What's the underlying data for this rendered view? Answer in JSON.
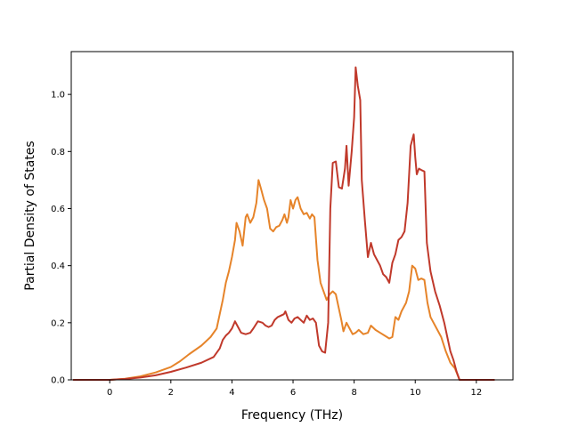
{
  "chart_data": {
    "type": "line",
    "title": "",
    "xlabel": "Frequency (THz)",
    "ylabel": "Partial Density of States",
    "xlim": [
      -1.26,
      13.2
    ],
    "ylim": [
      0.0,
      1.15
    ],
    "xticks": [
      0,
      2,
      4,
      6,
      8,
      10,
      12
    ],
    "xtick_labels": [
      "0",
      "2",
      "4",
      "6",
      "8",
      "10",
      "12"
    ],
    "yticks": [
      0.0,
      0.2,
      0.4,
      0.6,
      0.8,
      1.0
    ],
    "ytick_labels": [
      "0.0",
      "0.2",
      "0.4",
      "0.6",
      "0.8",
      "1.0"
    ],
    "grid": false,
    "legend": "none",
    "series": [
      {
        "color": "#e6842a",
        "points": [
          [
            -1.2,
            0.0
          ],
          [
            0.0,
            0.0
          ],
          [
            0.5,
            0.004
          ],
          [
            1.0,
            0.012
          ],
          [
            1.5,
            0.026
          ],
          [
            2.0,
            0.045
          ],
          [
            2.3,
            0.065
          ],
          [
            2.6,
            0.09
          ],
          [
            3.0,
            0.12
          ],
          [
            3.3,
            0.15
          ],
          [
            3.5,
            0.18
          ],
          [
            3.6,
            0.23
          ],
          [
            3.7,
            0.28
          ],
          [
            3.8,
            0.34
          ],
          [
            3.9,
            0.38
          ],
          [
            4.0,
            0.43
          ],
          [
            4.1,
            0.49
          ],
          [
            4.15,
            0.55
          ],
          [
            4.25,
            0.52
          ],
          [
            4.35,
            0.47
          ],
          [
            4.45,
            0.57
          ],
          [
            4.5,
            0.58
          ],
          [
            4.6,
            0.55
          ],
          [
            4.7,
            0.57
          ],
          [
            4.8,
            0.62
          ],
          [
            4.87,
            0.7
          ],
          [
            4.95,
            0.67
          ],
          [
            5.05,
            0.63
          ],
          [
            5.15,
            0.6
          ],
          [
            5.25,
            0.53
          ],
          [
            5.35,
            0.52
          ],
          [
            5.45,
            0.535
          ],
          [
            5.55,
            0.54
          ],
          [
            5.65,
            0.56
          ],
          [
            5.72,
            0.58
          ],
          [
            5.8,
            0.55
          ],
          [
            5.85,
            0.57
          ],
          [
            5.92,
            0.63
          ],
          [
            6.0,
            0.6
          ],
          [
            6.08,
            0.63
          ],
          [
            6.15,
            0.64
          ],
          [
            6.25,
            0.6
          ],
          [
            6.35,
            0.58
          ],
          [
            6.45,
            0.585
          ],
          [
            6.55,
            0.565
          ],
          [
            6.62,
            0.58
          ],
          [
            6.7,
            0.57
          ],
          [
            6.8,
            0.42
          ],
          [
            6.9,
            0.34
          ],
          [
            7.0,
            0.31
          ],
          [
            7.1,
            0.28
          ],
          [
            7.2,
            0.3
          ],
          [
            7.3,
            0.31
          ],
          [
            7.4,
            0.3
          ],
          [
            7.5,
            0.25
          ],
          [
            7.58,
            0.21
          ],
          [
            7.65,
            0.17
          ],
          [
            7.75,
            0.2
          ],
          [
            7.85,
            0.18
          ],
          [
            7.95,
            0.16
          ],
          [
            8.05,
            0.165
          ],
          [
            8.15,
            0.175
          ],
          [
            8.3,
            0.16
          ],
          [
            8.45,
            0.165
          ],
          [
            8.55,
            0.19
          ],
          [
            8.7,
            0.175
          ],
          [
            8.85,
            0.165
          ],
          [
            9.0,
            0.155
          ],
          [
            9.15,
            0.145
          ],
          [
            9.25,
            0.15
          ],
          [
            9.35,
            0.22
          ],
          [
            9.45,
            0.21
          ],
          [
            9.55,
            0.24
          ],
          [
            9.7,
            0.27
          ],
          [
            9.8,
            0.31
          ],
          [
            9.9,
            0.4
          ],
          [
            10.0,
            0.39
          ],
          [
            10.1,
            0.35
          ],
          [
            10.2,
            0.355
          ],
          [
            10.3,
            0.35
          ],
          [
            10.4,
            0.27
          ],
          [
            10.5,
            0.22
          ],
          [
            10.7,
            0.18
          ],
          [
            10.85,
            0.15
          ],
          [
            11.0,
            0.1
          ],
          [
            11.15,
            0.06
          ],
          [
            11.3,
            0.04
          ],
          [
            11.45,
            0.0
          ],
          [
            12.6,
            0.0
          ]
        ]
      },
      {
        "color": "#c0392b",
        "points": [
          [
            -1.2,
            0.0
          ],
          [
            0.0,
            0.0
          ],
          [
            0.5,
            0.003
          ],
          [
            1.0,
            0.008
          ],
          [
            1.5,
            0.016
          ],
          [
            2.0,
            0.028
          ],
          [
            2.5,
            0.043
          ],
          [
            3.0,
            0.06
          ],
          [
            3.4,
            0.08
          ],
          [
            3.6,
            0.11
          ],
          [
            3.7,
            0.14
          ],
          [
            3.8,
            0.155
          ],
          [
            3.9,
            0.165
          ],
          [
            4.0,
            0.18
          ],
          [
            4.1,
            0.205
          ],
          [
            4.2,
            0.185
          ],
          [
            4.3,
            0.165
          ],
          [
            4.45,
            0.16
          ],
          [
            4.6,
            0.165
          ],
          [
            4.7,
            0.18
          ],
          [
            4.85,
            0.205
          ],
          [
            5.0,
            0.2
          ],
          [
            5.1,
            0.19
          ],
          [
            5.2,
            0.185
          ],
          [
            5.3,
            0.19
          ],
          [
            5.4,
            0.21
          ],
          [
            5.5,
            0.22
          ],
          [
            5.6,
            0.225
          ],
          [
            5.7,
            0.23
          ],
          [
            5.75,
            0.24
          ],
          [
            5.85,
            0.21
          ],
          [
            5.95,
            0.2
          ],
          [
            6.05,
            0.215
          ],
          [
            6.15,
            0.22
          ],
          [
            6.25,
            0.21
          ],
          [
            6.35,
            0.2
          ],
          [
            6.45,
            0.225
          ],
          [
            6.55,
            0.21
          ],
          [
            6.65,
            0.215
          ],
          [
            6.75,
            0.2
          ],
          [
            6.85,
            0.12
          ],
          [
            6.95,
            0.1
          ],
          [
            7.05,
            0.095
          ],
          [
            7.15,
            0.2
          ],
          [
            7.22,
            0.6
          ],
          [
            7.3,
            0.76
          ],
          [
            7.4,
            0.765
          ],
          [
            7.5,
            0.675
          ],
          [
            7.6,
            0.67
          ],
          [
            7.7,
            0.74
          ],
          [
            7.75,
            0.82
          ],
          [
            7.82,
            0.68
          ],
          [
            7.92,
            0.8
          ],
          [
            8.0,
            0.92
          ],
          [
            8.05,
            1.095
          ],
          [
            8.12,
            1.03
          ],
          [
            8.2,
            0.98
          ],
          [
            8.25,
            0.7
          ],
          [
            8.35,
            0.56
          ],
          [
            8.45,
            0.43
          ],
          [
            8.55,
            0.48
          ],
          [
            8.65,
            0.44
          ],
          [
            8.75,
            0.42
          ],
          [
            8.85,
            0.4
          ],
          [
            8.95,
            0.37
          ],
          [
            9.05,
            0.36
          ],
          [
            9.15,
            0.34
          ],
          [
            9.25,
            0.41
          ],
          [
            9.35,
            0.44
          ],
          [
            9.45,
            0.49
          ],
          [
            9.55,
            0.5
          ],
          [
            9.65,
            0.52
          ],
          [
            9.75,
            0.62
          ],
          [
            9.85,
            0.82
          ],
          [
            9.95,
            0.86
          ],
          [
            10.0,
            0.78
          ],
          [
            10.05,
            0.72
          ],
          [
            10.12,
            0.74
          ],
          [
            10.2,
            0.735
          ],
          [
            10.3,
            0.73
          ],
          [
            10.38,
            0.48
          ],
          [
            10.5,
            0.38
          ],
          [
            10.65,
            0.31
          ],
          [
            10.8,
            0.26
          ],
          [
            10.95,
            0.2
          ],
          [
            11.05,
            0.15
          ],
          [
            11.15,
            0.1
          ],
          [
            11.25,
            0.07
          ],
          [
            11.35,
            0.03
          ],
          [
            11.45,
            0.0
          ],
          [
            12.6,
            0.0
          ]
        ]
      }
    ]
  }
}
